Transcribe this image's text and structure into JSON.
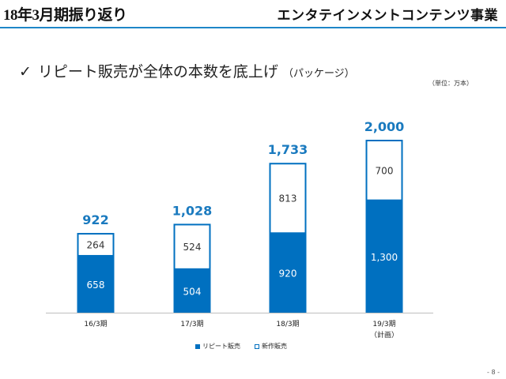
{
  "header": {
    "left_title": "18年3月期振り返り",
    "right_title": "エンタテインメントコンテンツ事業"
  },
  "subtitle": {
    "check": "✓",
    "main": "リピート販売が全体の本数を底上げ",
    "note": "（パッケージ）"
  },
  "unit_label": "（単位：万本）",
  "page_number": "- 8 -",
  "colors": {
    "repeat": "#0070c0",
    "new": "#ffffff",
    "accent": "#1e86c8",
    "total_label": "#1a7abf"
  },
  "chart_data": {
    "type": "bar",
    "stacked": true,
    "categories": [
      "16/3期",
      "17/3期",
      "18/3期",
      "19/3期"
    ],
    "category_notes": [
      "",
      "",
      "",
      "（計画）"
    ],
    "series": [
      {
        "name": "リピート販売",
        "values": [
          658,
          504,
          920,
          1300
        ],
        "value_labels": [
          "658",
          "504",
          "920",
          "1,300"
        ]
      },
      {
        "name": "新作販売",
        "values": [
          264,
          524,
          813,
          700
        ],
        "value_labels": [
          "264",
          "524",
          "813",
          "700"
        ]
      }
    ],
    "totals": [
      922,
      1028,
      1733,
      2000
    ],
    "total_labels": [
      "922",
      "1,028",
      "1,733",
      "2,000"
    ],
    "ylim": [
      0,
      2000
    ],
    "grid": false,
    "legend": "bottom"
  }
}
